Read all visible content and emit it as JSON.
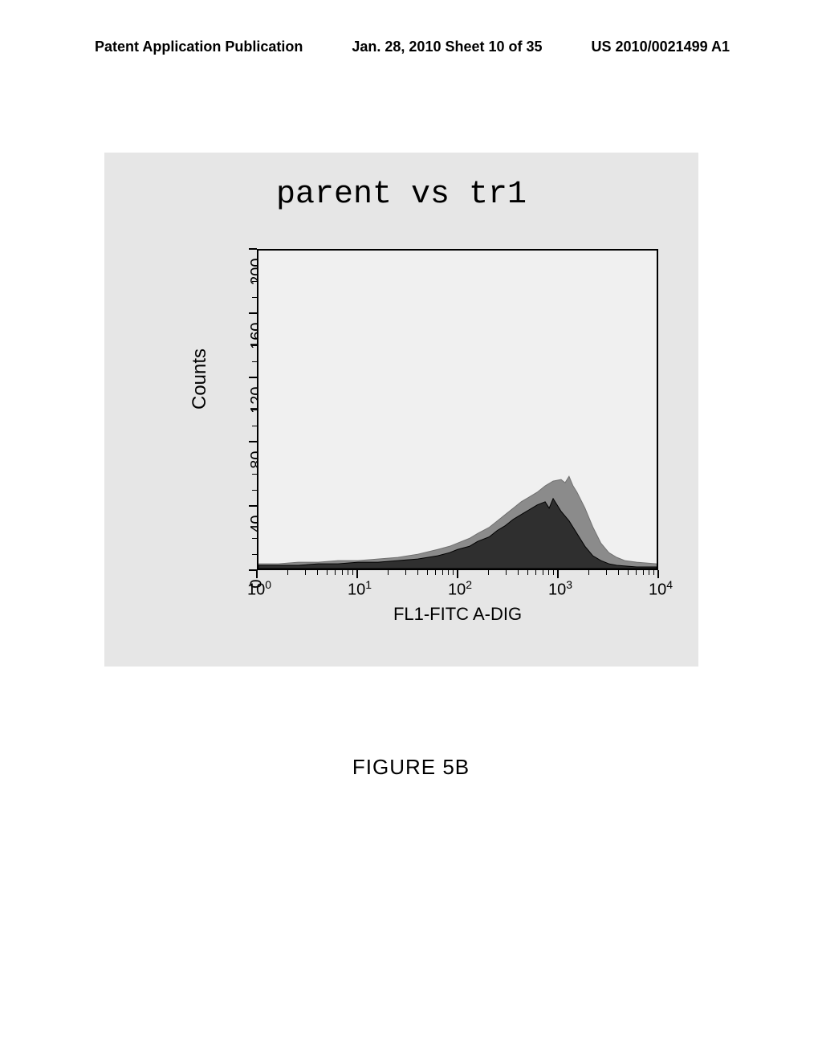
{
  "header": {
    "left": "Patent Application Publication",
    "center": "Jan. 28, 2010  Sheet 10 of 35",
    "right": "US 2010/0021499 A1"
  },
  "figure": {
    "title": "parent vs tr1",
    "caption": "FIGURE 5B",
    "panel_bg": "#e6e6e6",
    "plot_bg": "#f0f0f0",
    "border_color": "#000000"
  },
  "chart": {
    "type": "histogram",
    "xlabel": "FL1-FITC A-DIG",
    "ylabel": "Counts",
    "x_scale": "log",
    "x_ticks": [
      {
        "label_base": "10",
        "label_exp": "0",
        "frac": 0.0
      },
      {
        "label_base": "10",
        "label_exp": "1",
        "frac": 0.25
      },
      {
        "label_base": "10",
        "label_exp": "2",
        "frac": 0.5
      },
      {
        "label_base": "10",
        "label_exp": "3",
        "frac": 0.75
      },
      {
        "label_base": "10",
        "label_exp": "4",
        "frac": 1.0
      }
    ],
    "y_ticks": [
      {
        "label": "0",
        "value": 0
      },
      {
        "label": "40",
        "value": 40
      },
      {
        "label": "80",
        "value": 80
      },
      {
        "label": "120",
        "value": 120
      },
      {
        "label": "160",
        "value": 160
      },
      {
        "label": "200",
        "value": 200
      }
    ],
    "ylim": [
      0,
      200
    ],
    "series": [
      {
        "name": "tr1",
        "fill": "#808080",
        "stroke": "#707070",
        "opacity": 0.9,
        "points": [
          {
            "x": 0.0,
            "y": 3
          },
          {
            "x": 0.05,
            "y": 3
          },
          {
            "x": 0.1,
            "y": 4
          },
          {
            "x": 0.15,
            "y": 4
          },
          {
            "x": 0.2,
            "y": 5
          },
          {
            "x": 0.25,
            "y": 5
          },
          {
            "x": 0.3,
            "y": 6
          },
          {
            "x": 0.35,
            "y": 7
          },
          {
            "x": 0.4,
            "y": 9
          },
          {
            "x": 0.45,
            "y": 12
          },
          {
            "x": 0.48,
            "y": 14
          },
          {
            "x": 0.5,
            "y": 16
          },
          {
            "x": 0.53,
            "y": 19
          },
          {
            "x": 0.55,
            "y": 22
          },
          {
            "x": 0.58,
            "y": 26
          },
          {
            "x": 0.6,
            "y": 30
          },
          {
            "x": 0.62,
            "y": 34
          },
          {
            "x": 0.64,
            "y": 38
          },
          {
            "x": 0.66,
            "y": 42
          },
          {
            "x": 0.68,
            "y": 45
          },
          {
            "x": 0.7,
            "y": 48
          },
          {
            "x": 0.72,
            "y": 52
          },
          {
            "x": 0.74,
            "y": 55
          },
          {
            "x": 0.76,
            "y": 56
          },
          {
            "x": 0.77,
            "y": 54
          },
          {
            "x": 0.78,
            "y": 58
          },
          {
            "x": 0.79,
            "y": 52
          },
          {
            "x": 0.8,
            "y": 48
          },
          {
            "x": 0.82,
            "y": 38
          },
          {
            "x": 0.84,
            "y": 26
          },
          {
            "x": 0.86,
            "y": 16
          },
          {
            "x": 0.88,
            "y": 10
          },
          {
            "x": 0.9,
            "y": 7
          },
          {
            "x": 0.92,
            "y": 5
          },
          {
            "x": 0.95,
            "y": 4
          },
          {
            "x": 1.0,
            "y": 3
          }
        ]
      },
      {
        "name": "parent",
        "fill": "#2a2a2a",
        "stroke": "#000000",
        "opacity": 0.95,
        "points": [
          {
            "x": 0.0,
            "y": 2
          },
          {
            "x": 0.05,
            "y": 2
          },
          {
            "x": 0.1,
            "y": 2
          },
          {
            "x": 0.15,
            "y": 3
          },
          {
            "x": 0.2,
            "y": 3
          },
          {
            "x": 0.25,
            "y": 4
          },
          {
            "x": 0.3,
            "y": 4
          },
          {
            "x": 0.35,
            "y": 5
          },
          {
            "x": 0.4,
            "y": 6
          },
          {
            "x": 0.45,
            "y": 8
          },
          {
            "x": 0.48,
            "y": 10
          },
          {
            "x": 0.5,
            "y": 12
          },
          {
            "x": 0.53,
            "y": 14
          },
          {
            "x": 0.55,
            "y": 17
          },
          {
            "x": 0.58,
            "y": 20
          },
          {
            "x": 0.6,
            "y": 24
          },
          {
            "x": 0.62,
            "y": 27
          },
          {
            "x": 0.64,
            "y": 31
          },
          {
            "x": 0.66,
            "y": 34
          },
          {
            "x": 0.68,
            "y": 37
          },
          {
            "x": 0.7,
            "y": 40
          },
          {
            "x": 0.72,
            "y": 42
          },
          {
            "x": 0.73,
            "y": 38
          },
          {
            "x": 0.74,
            "y": 44
          },
          {
            "x": 0.75,
            "y": 40
          },
          {
            "x": 0.76,
            "y": 36
          },
          {
            "x": 0.78,
            "y": 30
          },
          {
            "x": 0.8,
            "y": 22
          },
          {
            "x": 0.82,
            "y": 14
          },
          {
            "x": 0.84,
            "y": 8
          },
          {
            "x": 0.86,
            "y": 5
          },
          {
            "x": 0.88,
            "y": 3
          },
          {
            "x": 0.9,
            "y": 2
          },
          {
            "x": 0.95,
            "y": 1
          },
          {
            "x": 1.0,
            "y": 1
          }
        ]
      }
    ]
  }
}
